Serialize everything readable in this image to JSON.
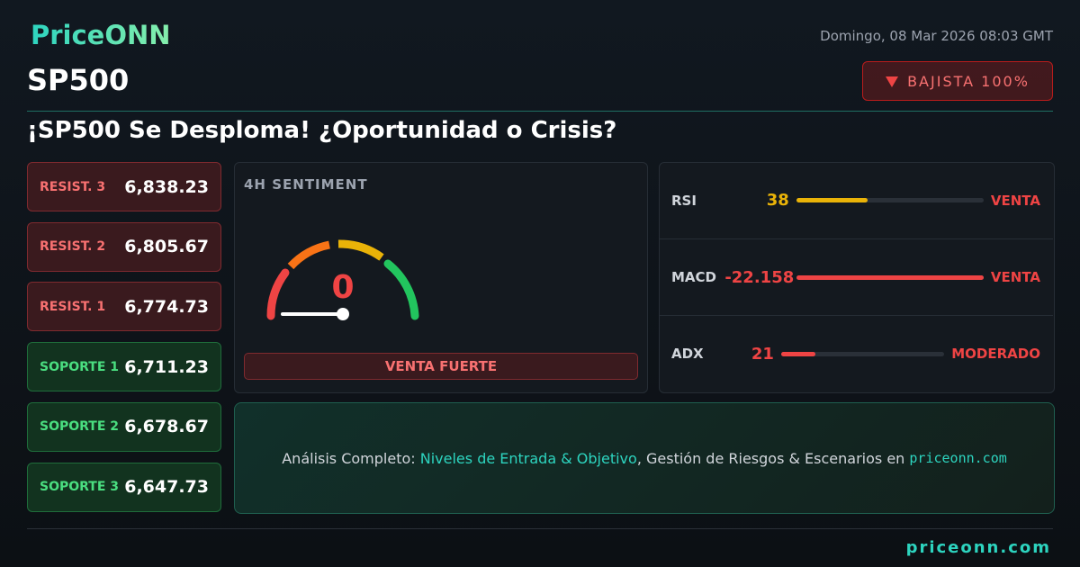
{
  "header": {
    "brand": "PriceONN",
    "symbol": "SP500",
    "date": "Domingo, 08 Mar 2026 08:03 GMT",
    "badge": "BAJISTA 100%",
    "headline": "¡SP500 Se Desploma! ¿Oportunidad o Crisis?"
  },
  "levels": [
    {
      "label": "RESIST. 3",
      "value": "6,838.23",
      "kind": "resistance"
    },
    {
      "label": "RESIST. 2",
      "value": "6,805.67",
      "kind": "resistance"
    },
    {
      "label": "RESIST. 1",
      "value": "6,774.73",
      "kind": "resistance"
    },
    {
      "label": "SOPORTE 1",
      "value": "6,711.23",
      "kind": "support"
    },
    {
      "label": "SOPORTE 2",
      "value": "6,678.67",
      "kind": "support"
    },
    {
      "label": "SOPORTE 3",
      "value": "6,647.73",
      "kind": "support"
    }
  ],
  "sentiment": {
    "title": "4H SENTIMENT",
    "value": 0,
    "verdict": "VENTA FUERTE"
  },
  "indicators": [
    {
      "name": "RSI",
      "value": 38,
      "signal": "VENTA",
      "color": "#eab308",
      "signal_color": "#ef4444"
    },
    {
      "name": "MACD",
      "value": -22.158,
      "signal": "VENTA",
      "color": "#ef4444",
      "signal_color": "#ef4444"
    },
    {
      "name": "ADX",
      "value": 21,
      "signal": "MODERADO",
      "color": "#ef4444",
      "signal_color": "#ef4444"
    }
  ],
  "promo": {
    "prefix": "Análisis Completo: ",
    "highlight": "Niveles de Entrada & Objetivo",
    "middle": ", Gestión de Riesgos & Escenarios en ",
    "link": "priceonn.com"
  },
  "footer": {
    "site": "priceonn.com"
  }
}
